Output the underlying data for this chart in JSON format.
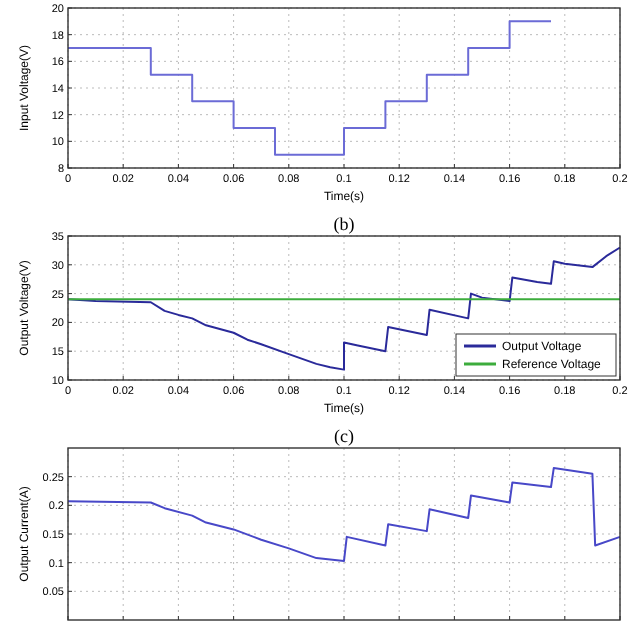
{
  "chart_data": [
    {
      "type": "step",
      "xlabel": "Time(s)",
      "ylabel": "Input Voltage(V)",
      "xlim": [
        0,
        0.2
      ],
      "xticks": [
        0,
        0.02,
        0.04,
        0.06,
        0.08,
        0.1,
        0.12,
        0.14,
        0.16,
        0.18,
        0.2
      ],
      "ylim": [
        8,
        20
      ],
      "yticks": [
        8,
        10,
        12,
        14,
        16,
        18,
        20
      ],
      "grid": true,
      "legend": false,
      "series": [
        {
          "color": "#6b6bd6",
          "x": [
            0,
            0.03,
            0.045,
            0.06,
            0.075,
            0.1,
            0.115,
            0.13,
            0.145,
            0.16,
            0.175
          ],
          "values": [
            17,
            15,
            13,
            11,
            9,
            11,
            13,
            15,
            17,
            19,
            19
          ]
        }
      ]
    },
    {
      "type": "line",
      "title": "(b)",
      "xlabel": "Time(s)",
      "ylabel": "Output Voltage(V)",
      "xlim": [
        0,
        0.2
      ],
      "xticks": [
        0,
        0.02,
        0.04,
        0.06,
        0.08,
        0.1,
        0.12,
        0.14,
        0.16,
        0.18,
        0.2
      ],
      "ylim": [
        10,
        35
      ],
      "yticks": [
        10,
        15,
        20,
        25,
        30,
        35
      ],
      "grid": true,
      "legend": "bottom right",
      "series": [
        {
          "name": "Output Voltage",
          "color": "#2a2a9a",
          "x": [
            0,
            0.01,
            0.03,
            0.035,
            0.04,
            0.045,
            0.05,
            0.06,
            0.065,
            0.07,
            0.08,
            0.09,
            0.095,
            0.1,
            0.1,
            0.105,
            0.115,
            0.116,
            0.13,
            0.131,
            0.145,
            0.146,
            0.15,
            0.16,
            0.161,
            0.17,
            0.175,
            0.176,
            0.18,
            0.19,
            0.195,
            0.2
          ],
          "values": [
            24,
            23.7,
            23.5,
            22,
            21.3,
            20.7,
            19.5,
            18.2,
            17,
            16.2,
            14.5,
            12.8,
            12.2,
            11.8,
            16.5,
            16,
            15,
            19.2,
            17.8,
            22.2,
            20.7,
            25,
            24.3,
            23.7,
            27.8,
            27,
            26.7,
            30.6,
            30.2,
            29.6,
            31.5,
            33
          ]
        },
        {
          "name": "Reference Voltage",
          "color": "#3cac3c",
          "x": [
            0,
            0.2
          ],
          "values": [
            24,
            24
          ]
        }
      ]
    },
    {
      "type": "line",
      "title": "(c)",
      "ylabel": "Output Current(A)",
      "xlim": [
        0,
        0.2
      ],
      "xticks": [
        0,
        0.02,
        0.04,
        0.06,
        0.08,
        0.1,
        0.12,
        0.14,
        0.16,
        0.18,
        0.2
      ],
      "ylim": [
        0,
        0.3
      ],
      "yticks": [
        0.05,
        0.1,
        0.15,
        0.2,
        0.25
      ],
      "grid": true,
      "legend": false,
      "tick_labels": "y",
      "series": [
        {
          "color": "#4848c8",
          "x": [
            0,
            0.03,
            0.035,
            0.045,
            0.05,
            0.06,
            0.07,
            0.08,
            0.09,
            0.1,
            0.101,
            0.115,
            0.116,
            0.13,
            0.131,
            0.145,
            0.146,
            0.16,
            0.161,
            0.175,
            0.176,
            0.19,
            0.191,
            0.2
          ],
          "values": [
            0.207,
            0.205,
            0.195,
            0.182,
            0.17,
            0.158,
            0.14,
            0.125,
            0.108,
            0.103,
            0.145,
            0.13,
            0.167,
            0.155,
            0.193,
            0.178,
            0.217,
            0.205,
            0.24,
            0.232,
            0.265,
            0.255,
            0.13,
            0.145
          ]
        }
      ]
    }
  ]
}
